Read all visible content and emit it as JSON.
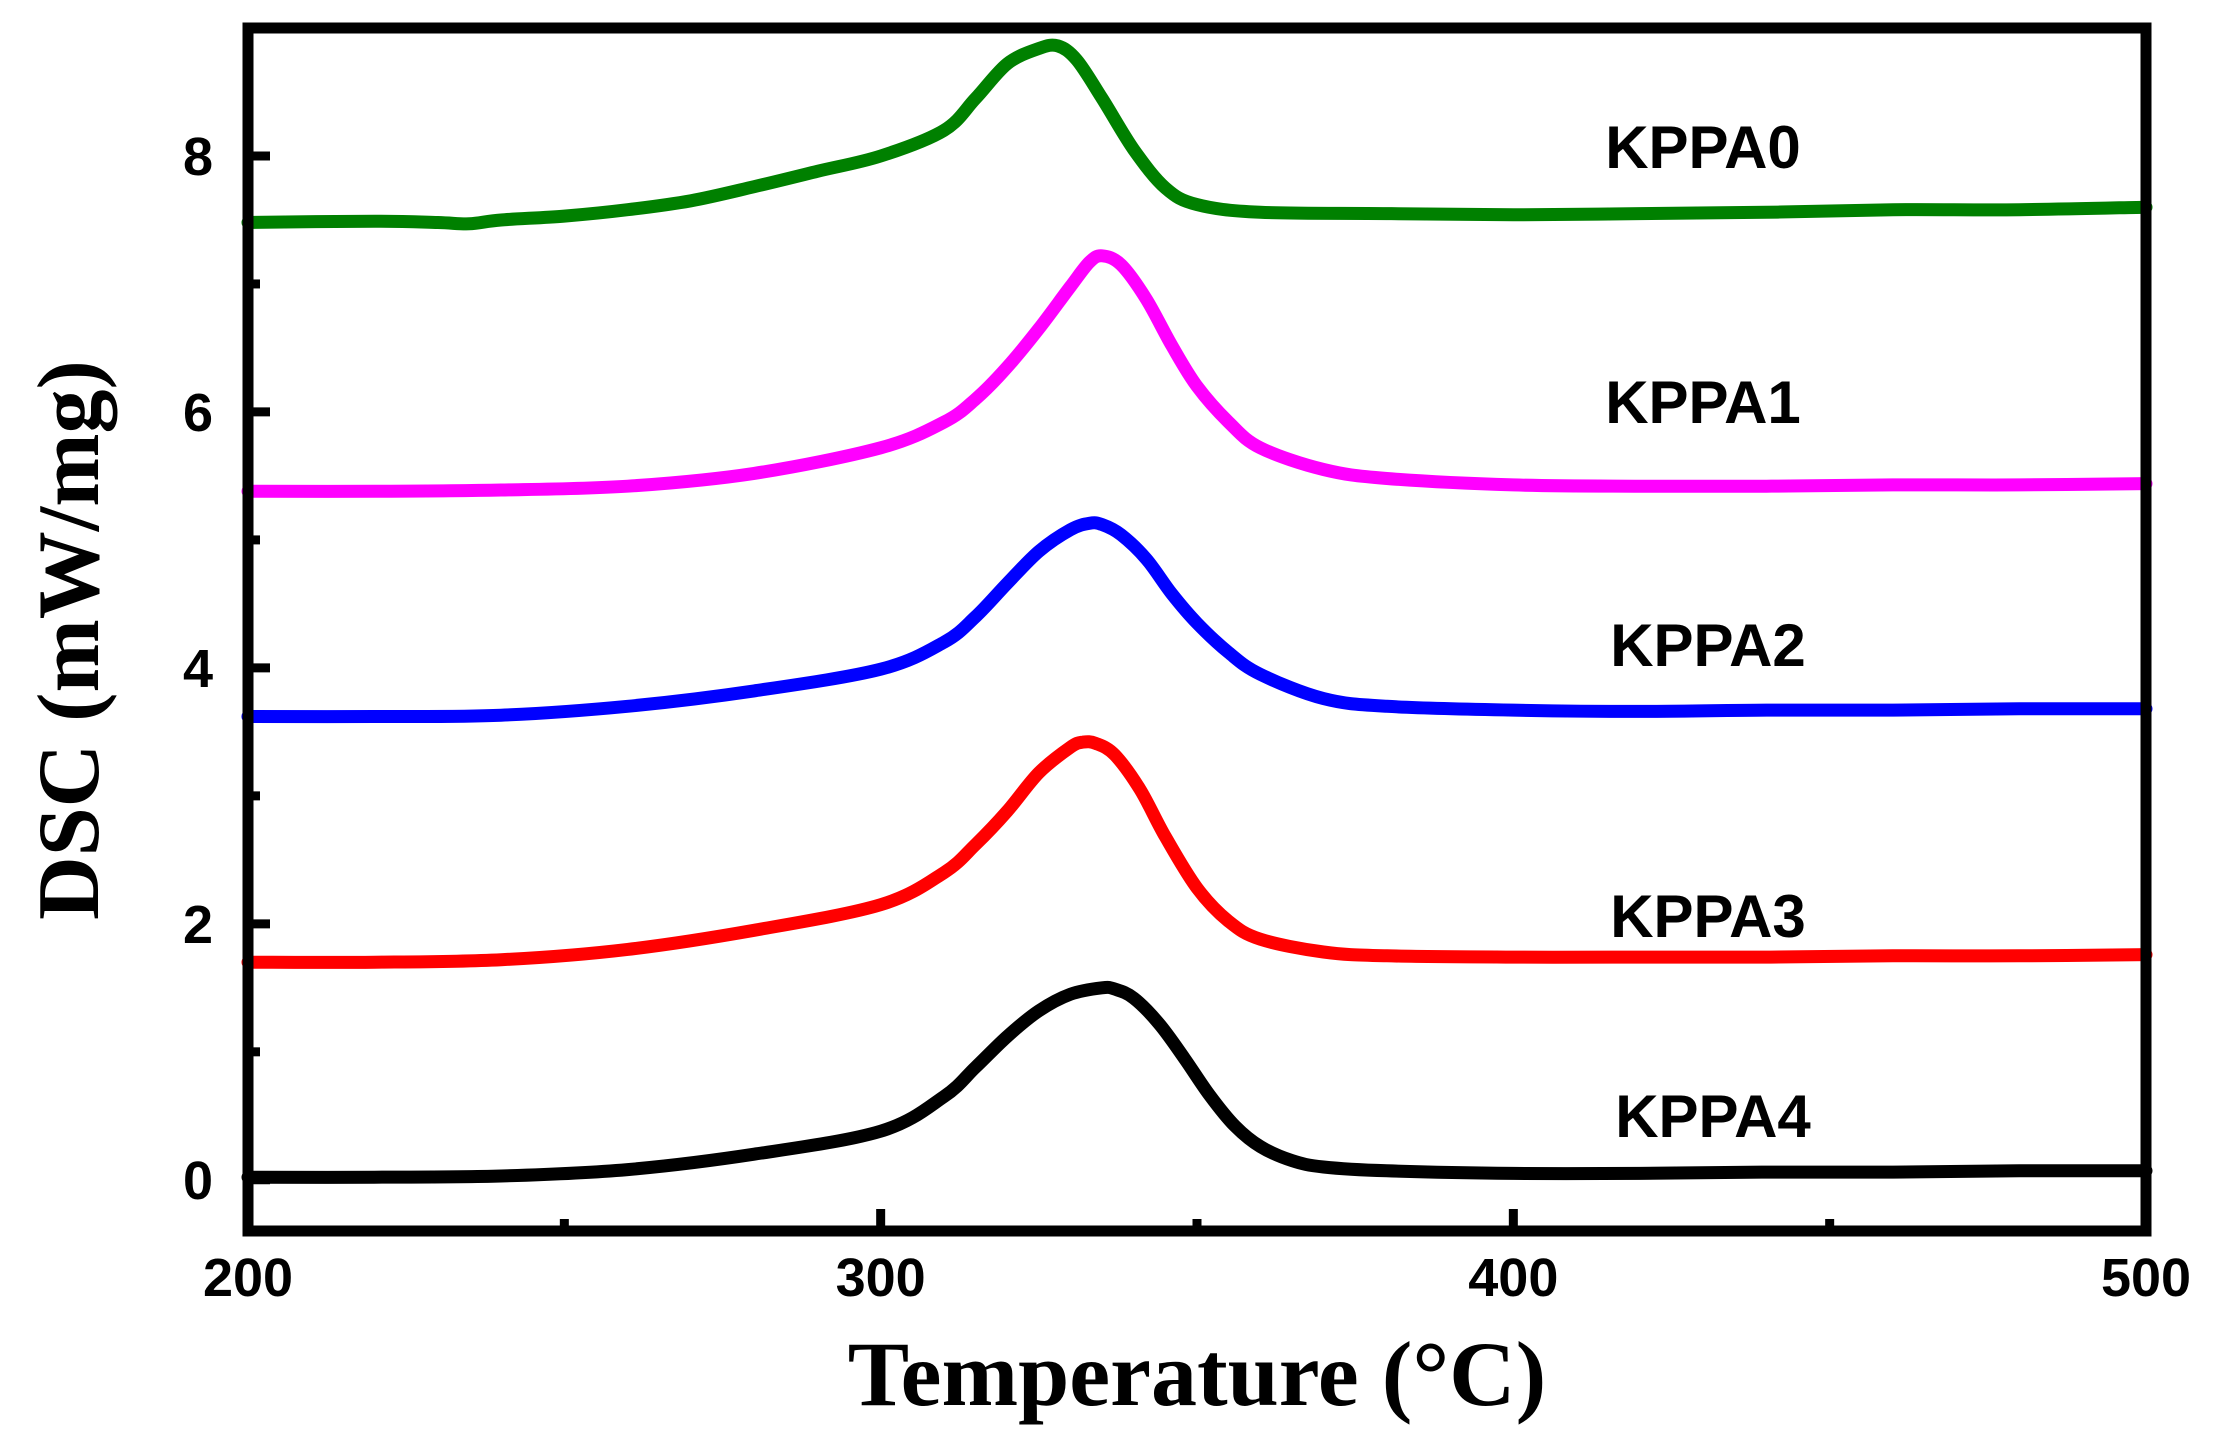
{
  "chart_data": {
    "type": "line",
    "title": "",
    "xlabel": "Temperature (°C)",
    "ylabel": "DSC (mW/mg)",
    "xlim": [
      200,
      500
    ],
    "ylim": [
      -0.4,
      9.0
    ],
    "xticks": [
      200,
      300,
      400,
      500
    ],
    "xtick_labels": [
      "200",
      "300",
      "400",
      "500"
    ],
    "x_minor_ticks": [
      250,
      350,
      450
    ],
    "yticks": [
      0,
      2,
      4,
      6,
      8
    ],
    "ytick_labels": [
      "0",
      "2",
      "4",
      "6",
      "8"
    ],
    "y_minor_ticks": [
      1,
      3,
      5,
      7
    ],
    "grid": false,
    "series": [
      {
        "name": "KPPA0",
        "label": "KPPA0",
        "color": "#008000",
        "x": [
          200,
          220,
          230,
          235,
          240,
          250,
          260,
          270,
          280,
          290,
          300,
          310,
          315,
          320,
          325,
          328,
          331,
          335,
          340,
          345,
          350,
          360,
          380,
          400,
          420,
          440,
          460,
          480,
          500
        ],
        "y": [
          7.48,
          7.49,
          7.48,
          7.47,
          7.5,
          7.53,
          7.58,
          7.65,
          7.76,
          7.88,
          8.0,
          8.2,
          8.45,
          8.72,
          8.84,
          8.86,
          8.75,
          8.45,
          8.05,
          7.75,
          7.62,
          7.56,
          7.55,
          7.54,
          7.55,
          7.56,
          7.58,
          7.58,
          7.6
        ]
      },
      {
        "name": "KPPA1",
        "label": "KPPA1",
        "color": "#ff00ff",
        "x": [
          200,
          220,
          240,
          260,
          280,
          300,
          310,
          315,
          320,
          325,
          330,
          333,
          335,
          338,
          342,
          346,
          350,
          355,
          360,
          370,
          380,
          400,
          420,
          440,
          460,
          480,
          500
        ],
        "y": [
          5.38,
          5.38,
          5.39,
          5.42,
          5.52,
          5.72,
          5.92,
          6.1,
          6.35,
          6.65,
          6.98,
          7.17,
          7.22,
          7.15,
          6.88,
          6.52,
          6.2,
          5.92,
          5.72,
          5.55,
          5.48,
          5.43,
          5.42,
          5.42,
          5.43,
          5.43,
          5.44
        ]
      },
      {
        "name": "KPPA2",
        "label": "KPPA2",
        "color": "#0000ff",
        "x": [
          200,
          220,
          240,
          260,
          280,
          300,
          310,
          315,
          320,
          325,
          330,
          333,
          335,
          338,
          342,
          346,
          350,
          355,
          360,
          370,
          380,
          400,
          420,
          440,
          460,
          480,
          500
        ],
        "y": [
          3.62,
          3.62,
          3.63,
          3.7,
          3.82,
          3.99,
          4.2,
          4.4,
          4.66,
          4.91,
          5.08,
          5.13,
          5.12,
          5.04,
          4.85,
          4.58,
          4.35,
          4.12,
          3.95,
          3.76,
          3.7,
          3.67,
          3.66,
          3.67,
          3.67,
          3.68,
          3.68
        ]
      },
      {
        "name": "KPPA3",
        "label": "KPPA3",
        "color": "#ff0000",
        "x": [
          200,
          220,
          240,
          260,
          280,
          300,
          310,
          315,
          320,
          325,
          330,
          332,
          334,
          337,
          341,
          345,
          350,
          355,
          360,
          370,
          380,
          400,
          420,
          440,
          460,
          480,
          500
        ],
        "y": [
          1.7,
          1.7,
          1.72,
          1.8,
          1.95,
          2.15,
          2.4,
          2.62,
          2.88,
          3.18,
          3.38,
          3.42,
          3.41,
          3.32,
          3.05,
          2.68,
          2.28,
          2.02,
          1.88,
          1.78,
          1.75,
          1.74,
          1.74,
          1.74,
          1.75,
          1.75,
          1.76
        ]
      },
      {
        "name": "KPPA4",
        "label": "KPPA4",
        "color": "#000000",
        "x": [
          200,
          220,
          240,
          260,
          280,
          300,
          310,
          315,
          320,
          325,
          330,
          335,
          337,
          340,
          344,
          348,
          352,
          356,
          360,
          365,
          370,
          380,
          400,
          420,
          440,
          460,
          480,
          500
        ],
        "y": [
          0.02,
          0.02,
          0.03,
          0.08,
          0.2,
          0.38,
          0.65,
          0.88,
          1.12,
          1.32,
          1.45,
          1.5,
          1.49,
          1.42,
          1.22,
          0.95,
          0.66,
          0.42,
          0.26,
          0.15,
          0.1,
          0.07,
          0.05,
          0.05,
          0.06,
          0.06,
          0.07,
          0.07
        ]
      }
    ]
  }
}
